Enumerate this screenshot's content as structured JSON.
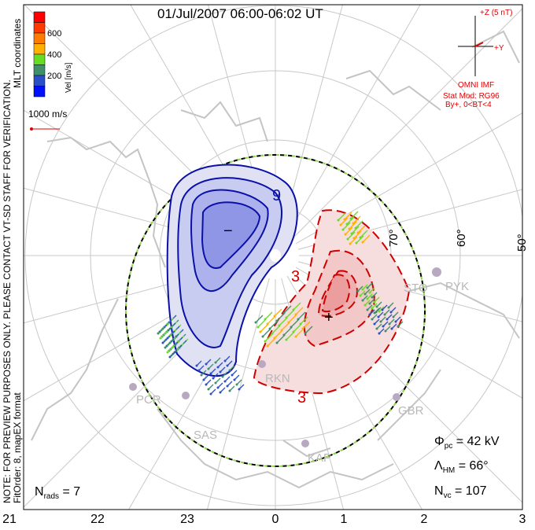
{
  "title": "01/Jul/2007 06:00-06:02 UT",
  "side_note": {
    "line1": "NOTE: FOR PREVIEW PURPOSES ONLY. PLEASE CONTACT VT-SD STAFF FOR VERIFICATION.",
    "line2": "FitOrder: 8, mapEX format",
    "coords": "MLT coordinates"
  },
  "colorbar": {
    "label": "Vel [m/s]",
    "ticks": [
      "600",
      "400",
      "200"
    ],
    "colors": [
      "#ff0000",
      "#ff3a00",
      "#ff7a00",
      "#ffb000",
      "#66dd22",
      "#3f8f6a",
      "#2a50c8",
      "#0010ff"
    ]
  },
  "scale_vector": {
    "label": "1000 m/s"
  },
  "imf": {
    "z_label": "+Z (5 nT)",
    "y_label": "+Y",
    "source": "OMNI IMF",
    "model": "Stat Mod: RG96",
    "condition": "By+, 0<BT<4"
  },
  "contour_labels": {
    "negative": "9",
    "positive_top": "3",
    "positive_bottom": "3"
  },
  "markers": {
    "min": "−",
    "max": "+"
  },
  "latitude_labels": [
    "70°",
    "60°",
    "50°"
  ],
  "stations": [
    "PCR",
    "SAS",
    "KAP",
    "GBR",
    "RKN",
    "STO",
    "PYK"
  ],
  "stats": {
    "phi_pc": {
      "symbol": "Φ",
      "sub": "pc",
      "value": "= 42 kV"
    },
    "lambda_hm": {
      "symbol": "Λ",
      "sub": "HM",
      "value": "= 66°"
    },
    "n_vc": {
      "symbol": "N",
      "sub": "vc",
      "value": "= 107"
    }
  },
  "n_rads": {
    "symbol": "N",
    "sub": "rads",
    "value": "= 7"
  },
  "mlt_labels": [
    "21",
    "22",
    "23",
    "0",
    "1",
    "2",
    "3"
  ]
}
